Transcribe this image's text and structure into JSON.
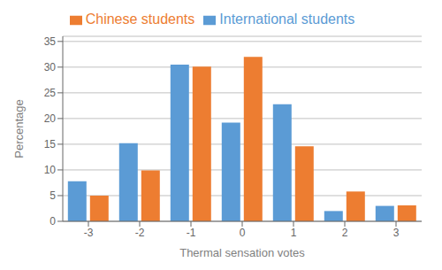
{
  "chart_data": {
    "type": "bar",
    "xlabel": "Thermal sensation votes",
    "ylabel": "Percentage",
    "categories": [
      -3,
      -2,
      -1,
      0,
      1,
      2,
      3
    ],
    "series": [
      {
        "name": "International students",
        "color": "#5b9bd5",
        "values": [
          7.8,
          15.2,
          30.5,
          19.2,
          22.8,
          2.0,
          3.0
        ]
      },
      {
        "name": "Chinese students",
        "color": "#ed7d31",
        "values": [
          5.0,
          9.9,
          30.1,
          32.0,
          14.6,
          5.8,
          3.1
        ]
      }
    ],
    "ylim": [
      0,
      36
    ],
    "yticks": [
      0,
      5,
      10,
      15,
      20,
      25,
      30,
      35
    ],
    "grid": true,
    "legend": "top"
  }
}
